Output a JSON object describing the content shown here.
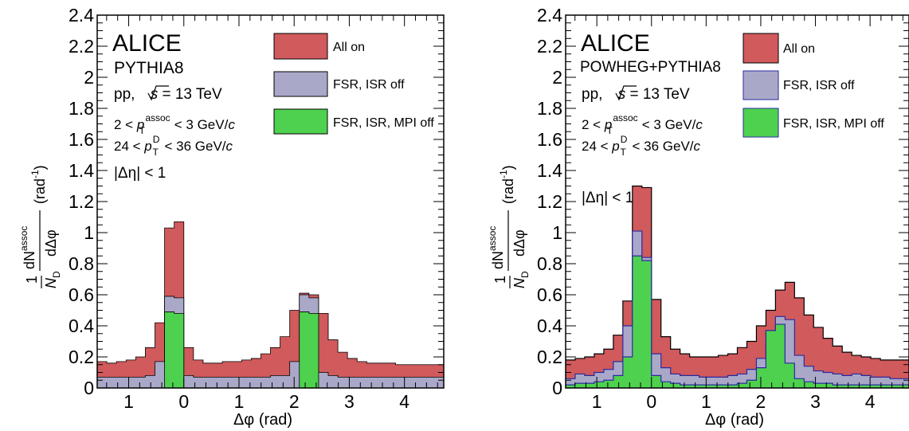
{
  "colors": {
    "all_on": "#d05a5c",
    "fsr_isr_off": "#aaa8c8",
    "fsr_isr_mpi_off": "#4ed14e",
    "outline": "#000000"
  },
  "chart_data": [
    {
      "type": "histogram",
      "xlabel": "Δφ (rad)",
      "ylabel": "1/N_D dN^assoc/dΔφ (rad^-1)",
      "xlim": [
        -1.5708,
        4.7124
      ],
      "ylim": [
        0,
        2.4
      ],
      "bin_width": 0.2618,
      "x_ticks": [
        "1",
        "0",
        "1",
        "2",
        "3",
        "4"
      ],
      "y_ticks": [
        "0",
        "0.2",
        "0.4",
        "0.6",
        "0.8",
        "1",
        "1.2",
        "1.4",
        "1.6",
        "1.8",
        "2",
        "2.2",
        "2.4"
      ],
      "labels": {
        "experiment": "ALICE",
        "generator": "PYTHIA8",
        "system_pre": "pp, ",
        "system_s": "s",
        "system_post": " = 13 TeV",
        "cut1_pre": "2 < ",
        "cut1_post": " < 3 GeV/",
        "cut2_pre": "24 < ",
        "cut2_post": " < 36 GeV/",
        "c": "c",
        "p": "p",
        "T": "T",
        "assoc": "assoc",
        "D": "D",
        "deta": "|Δη| < 1",
        "ylab_one": "1",
        "ylab_N": "N",
        "ylab_dN": "dN",
        "ylab_dphi": "dΔφ",
        "ylab_unit": "(rad",
        "ylab_unit_exp": "-1",
        "ylab_close": ")",
        "xlab": "Δφ (rad)"
      },
      "series": [
        {
          "name": "All on",
          "color_key": "all_on",
          "values": [
            0.17,
            0.16,
            0.17,
            0.18,
            0.2,
            0.26,
            0.42,
            1.03,
            1.07,
            0.26,
            0.18,
            0.16,
            0.16,
            0.17,
            0.17,
            0.18,
            0.19,
            0.22,
            0.26,
            0.33,
            0.5,
            0.61,
            0.6,
            0.48,
            0.31,
            0.23,
            0.19,
            0.17,
            0.16,
            0.16,
            0.16,
            0.15,
            0.15,
            0.15,
            0.15,
            0.15
          ]
        },
        {
          "name": "FSR, ISR off",
          "color_key": "fsr_isr_off",
          "values": [
            0.07,
            0.07,
            0.07,
            0.07,
            0.07,
            0.08,
            0.17,
            0.59,
            0.58,
            0.08,
            0.07,
            0.07,
            0.07,
            0.07,
            0.07,
            0.07,
            0.07,
            0.07,
            0.08,
            0.08,
            0.17,
            0.6,
            0.58,
            0.1,
            0.08,
            0.07,
            0.07,
            0.07,
            0.07,
            0.07,
            0.07,
            0.07,
            0.07,
            0.07,
            0.07,
            0.07
          ]
        },
        {
          "name": "FSR, ISR, MPI off",
          "color_key": "fsr_isr_mpi_off",
          "values": [
            0,
            0,
            0,
            0,
            0,
            0,
            0,
            0.49,
            0.48,
            0,
            0,
            0,
            0,
            0,
            0,
            0,
            0,
            0,
            0,
            0,
            0,
            0.49,
            0.48,
            0,
            0,
            0,
            0,
            0,
            0,
            0,
            0,
            0,
            0,
            0,
            0,
            0
          ]
        }
      ]
    },
    {
      "type": "histogram",
      "xlabel": "Δφ (rad)",
      "ylabel": "1/N_D dN^assoc/dΔφ (rad^-1)",
      "xlim": [
        -1.5708,
        4.7124
      ],
      "ylim": [
        0,
        2.4
      ],
      "bin_width": 0.2618,
      "x_ticks": [
        "1",
        "0",
        "1",
        "2",
        "3",
        "4"
      ],
      "y_ticks": [
        "0",
        "0.2",
        "0.4",
        "0.6",
        "0.8",
        "1",
        "1.2",
        "1.4",
        "1.6",
        "1.8",
        "2",
        "2.2",
        "2.4"
      ],
      "labels": {
        "experiment": "ALICE",
        "generator": "POWHEG+PYTHIA8",
        "system_pre": "pp, ",
        "system_s": "s",
        "system_post": " = 13 TeV",
        "cut1_pre": "2 < ",
        "cut1_post": " < 3 GeV/",
        "cut2_pre": "24 < ",
        "cut2_post": " < 36 GeV/",
        "c": "c",
        "p": "p",
        "T": "T",
        "assoc": "assoc",
        "D": "D",
        "deta": "|Δη| < 1",
        "ylab_one": "1",
        "ylab_N": "N",
        "ylab_dN": "dN",
        "ylab_dphi": "dΔφ",
        "ylab_unit": "(rad",
        "ylab_unit_exp": "-1",
        "ylab_close": ")",
        "xlab": "Δφ (rad)"
      },
      "series": [
        {
          "name": "All on",
          "color_key": "all_on",
          "values": [
            0.18,
            0.19,
            0.2,
            0.22,
            0.25,
            0.34,
            0.56,
            1.3,
            1.29,
            0.57,
            0.33,
            0.25,
            0.22,
            0.2,
            0.2,
            0.2,
            0.21,
            0.22,
            0.26,
            0.3,
            0.4,
            0.5,
            0.63,
            0.68,
            0.58,
            0.47,
            0.39,
            0.32,
            0.27,
            0.23,
            0.21,
            0.2,
            0.19,
            0.18,
            0.18,
            0.18
          ]
        },
        {
          "name": "FSR, ISR off",
          "color_key": "fsr_isr_off",
          "values": [
            0.06,
            0.09,
            0.08,
            0.1,
            0.12,
            0.17,
            0.4,
            1.01,
            0.84,
            0.22,
            0.13,
            0.09,
            0.08,
            0.08,
            0.07,
            0.07,
            0.07,
            0.08,
            0.09,
            0.12,
            0.19,
            0.29,
            0.46,
            0.44,
            0.21,
            0.14,
            0.11,
            0.1,
            0.09,
            0.08,
            0.09,
            0.08,
            0.07,
            0.07,
            0.06,
            0.06
          ]
        },
        {
          "name": "FSR, ISR, MPI off",
          "color_key": "fsr_isr_mpi_off",
          "values": [
            0.02,
            0.03,
            0.03,
            0.04,
            0.05,
            0.08,
            0.2,
            0.85,
            0.82,
            0.08,
            0.04,
            0.03,
            0.02,
            0.02,
            0.02,
            0.02,
            0.02,
            0.02,
            0.03,
            0.05,
            0.13,
            0.37,
            0.41,
            0.16,
            0.06,
            0.04,
            0.03,
            0.03,
            0.02,
            0.02,
            0.02,
            0.02,
            0.02,
            0.02,
            0.02,
            0.02
          ]
        }
      ]
    }
  ]
}
